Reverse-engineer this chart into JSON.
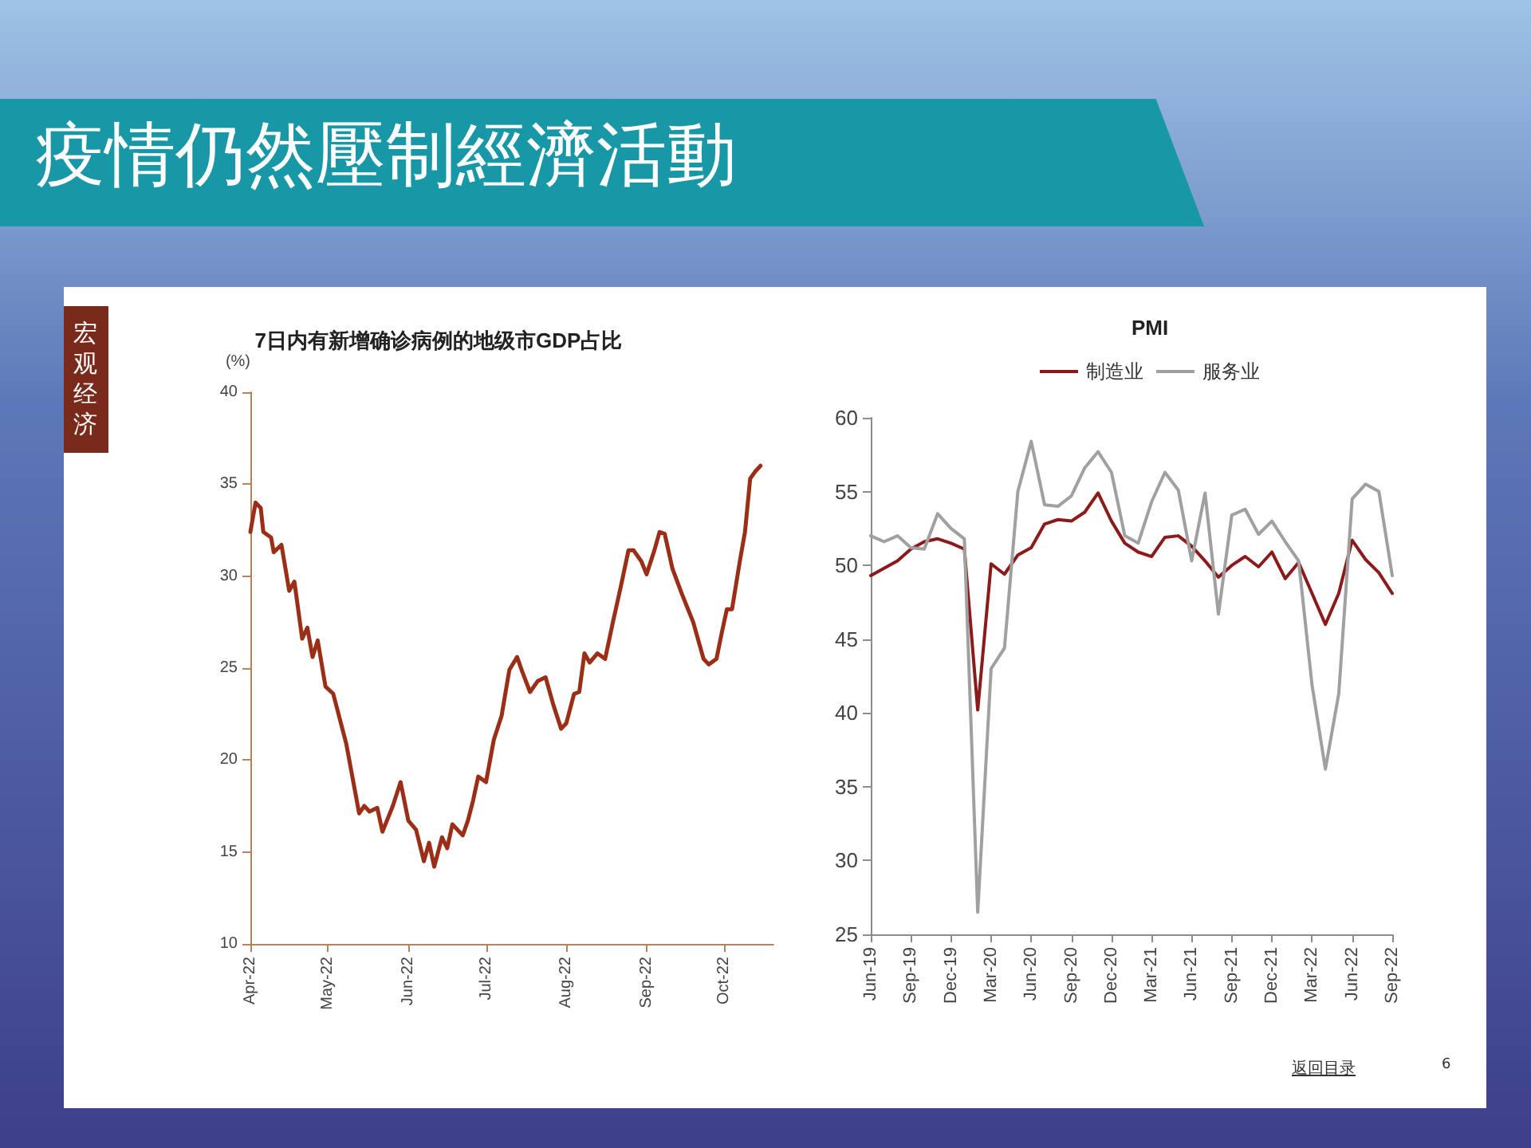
{
  "chart_data": [
    {
      "type": "line",
      "title": "7日内有新增确诊病例的地级市GDP占比",
      "ylabel": "(%)",
      "x": [
        "2022-04-01",
        "2022-04-03",
        "2022-04-05",
        "2022-04-06",
        "2022-04-09",
        "2022-04-10",
        "2022-04-13",
        "2022-04-16",
        "2022-04-18",
        "2022-04-21",
        "2022-04-23",
        "2022-04-25",
        "2022-04-27",
        "2022-04-30",
        "2022-05-03",
        "2022-05-08",
        "2022-05-13",
        "2022-05-15",
        "2022-05-17",
        "2022-05-20",
        "2022-05-22",
        "2022-05-26",
        "2022-05-29",
        "2022-06-01",
        "2022-06-04",
        "2022-06-07",
        "2022-06-09",
        "2022-06-11",
        "2022-06-14",
        "2022-06-16",
        "2022-06-18",
        "2022-06-22",
        "2022-06-24",
        "2022-06-26",
        "2022-06-28",
        "2022-07-01",
        "2022-07-04",
        "2022-07-07",
        "2022-07-10",
        "2022-07-13",
        "2022-07-15",
        "2022-07-18",
        "2022-07-21",
        "2022-07-24",
        "2022-07-27",
        "2022-07-30",
        "2022-08-01",
        "2022-08-04",
        "2022-08-06",
        "2022-08-08",
        "2022-08-10",
        "2022-08-13",
        "2022-08-16",
        "2022-08-19",
        "2022-08-22",
        "2022-08-25",
        "2022-08-27",
        "2022-08-30",
        "2022-09-01",
        "2022-09-04",
        "2022-09-06",
        "2022-09-08",
        "2022-09-11",
        "2022-09-15",
        "2022-09-19",
        "2022-09-23",
        "2022-09-25",
        "2022-09-28",
        "2022-09-30",
        "2022-10-02",
        "2022-10-04",
        "2022-10-07",
        "2022-10-09",
        "2022-10-11",
        "2022-10-13",
        "2022-10-15"
      ],
      "values": [
        32.4,
        34.0,
        33.7,
        32.4,
        32.1,
        31.3,
        31.7,
        29.2,
        29.7,
        26.6,
        27.2,
        25.6,
        26.5,
        24.0,
        23.6,
        20.9,
        17.1,
        17.5,
        17.2,
        17.4,
        16.1,
        17.5,
        18.8,
        16.7,
        16.2,
        14.5,
        15.5,
        14.2,
        15.8,
        15.2,
        16.5,
        15.9,
        16.7,
        17.8,
        19.1,
        18.8,
        21.1,
        22.4,
        24.9,
        25.6,
        24.8,
        23.7,
        24.3,
        24.5,
        23.0,
        21.7,
        22.0,
        23.6,
        23.7,
        25.8,
        25.3,
        25.8,
        25.5,
        27.5,
        29.4,
        31.4,
        31.4,
        30.8,
        30.1,
        31.4,
        32.4,
        32.3,
        30.4,
        28.9,
        27.5,
        25.5,
        25.2,
        25.5,
        26.9,
        28.2,
        28.2,
        30.8,
        32.4,
        35.3,
        35.7,
        36.0
      ],
      "color": "#9b2e16",
      "xlim": [
        "2022-04-01",
        "2022-10-20"
      ],
      "xticks": [
        {
          "value": "2022-04-01",
          "label": "Apr-22"
        },
        {
          "value": "2022-05-01",
          "label": "May-22"
        },
        {
          "value": "2022-06-01",
          "label": "Jun-22"
        },
        {
          "value": "2022-07-01",
          "label": "Jul-22"
        },
        {
          "value": "2022-08-01",
          "label": "Aug-22"
        },
        {
          "value": "2022-09-01",
          "label": "Sep-22"
        },
        {
          "value": "2022-10-01",
          "label": "Oct-22"
        }
      ],
      "ylim": [
        10,
        40
      ],
      "yticks": [
        10,
        15,
        20,
        25,
        30,
        35,
        40
      ],
      "grid": false,
      "legend": false,
      "marker": "none",
      "line_style": "solid",
      "annotations": [
        "疫情仍然壓制經濟活動",
        "宏观经济"
      ]
    },
    {
      "type": "line",
      "title": "PMI",
      "categories": [
        "Jun-19",
        null,
        null,
        "Sep-19",
        null,
        null,
        "Dec-19",
        null,
        null,
        "Mar-20",
        null,
        null,
        "Jun-20",
        null,
        null,
        "Sep-20",
        null,
        null,
        "Dec-20",
        null,
        null,
        "Mar-21",
        null,
        null,
        "Jun-21",
        null,
        null,
        "Sep-21",
        null,
        null,
        "Dec-21",
        null,
        null,
        "Mar-22",
        null,
        null,
        "Jun-22",
        null,
        null,
        "Sep-22"
      ],
      "series": [
        {
          "name": "制造业",
          "color": "#8b1a1a",
          "values": [
            49.3,
            49.8,
            50.3,
            51.1,
            51.6,
            51.8,
            51.5,
            51.1,
            40.2,
            50.1,
            49.4,
            50.7,
            51.2,
            52.8,
            53.1,
            53.0,
            53.6,
            54.9,
            53.0,
            51.5,
            50.9,
            50.6,
            51.9,
            52.0,
            51.3,
            50.3,
            49.2,
            50.0,
            50.6,
            49.9,
            50.9,
            49.1,
            50.2,
            48.1,
            46.0,
            48.1,
            51.7,
            50.4,
            49.5,
            48.1
          ]
        },
        {
          "name": "服务业",
          "color": "#a0a0a0",
          "values": [
            52.0,
            51.6,
            52.0,
            51.2,
            51.1,
            53.5,
            52.5,
            51.8,
            26.5,
            43.0,
            44.4,
            55.0,
            58.4,
            54.1,
            54.0,
            54.7,
            56.6,
            57.7,
            56.3,
            52.0,
            51.5,
            54.3,
            56.3,
            55.1,
            50.3,
            54.9,
            46.7,
            53.4,
            53.8,
            52.1,
            53.0,
            51.6,
            50.3,
            41.9,
            36.2,
            41.3,
            54.5,
            55.5,
            55.0,
            49.3
          ]
        }
      ],
      "ylim": [
        25,
        60
      ],
      "yticks": [
        25,
        30,
        35,
        40,
        45,
        50,
        55,
        60
      ],
      "grid": false,
      "legend": "top",
      "marker": "none",
      "line_style": "solid",
      "annotations": [
        "返回目录",
        "6"
      ]
    }
  ]
}
